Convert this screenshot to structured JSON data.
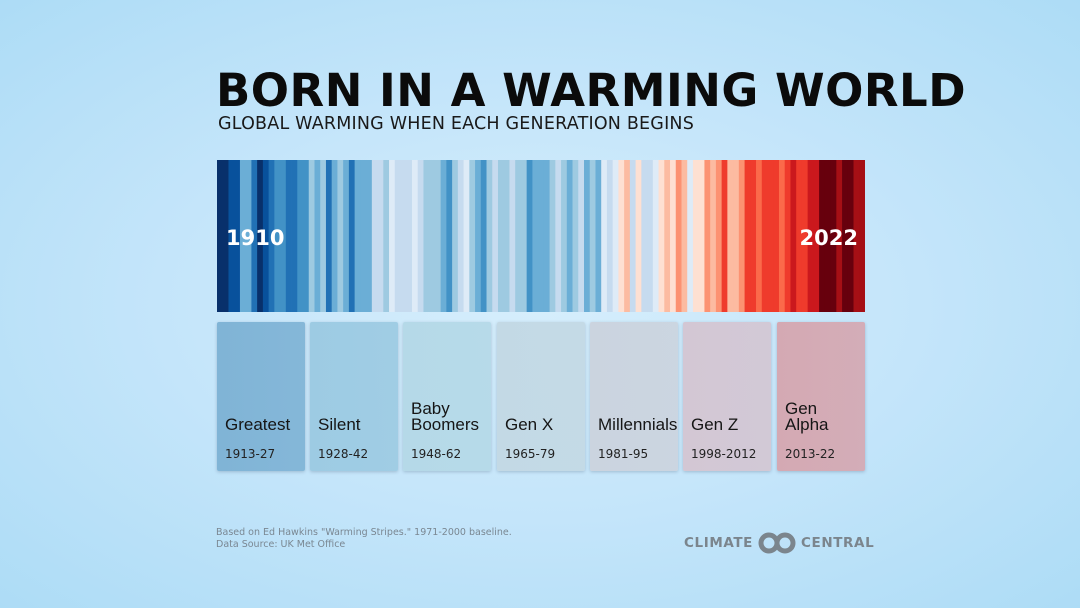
{
  "header": {
    "title": "BORN IN A WARMING WORLD",
    "subtitle": "GLOBAL WARMING WHEN EACH GENERATION BEGINS"
  },
  "chart_data": {
    "type": "heatmap",
    "x_start": 1910,
    "x_end": 2022,
    "start_label": "1910",
    "end_label": "2022",
    "palette": [
      "#08306b",
      "#08519c",
      "#2171b5",
      "#4292c6",
      "#6baed6",
      "#9ecae1",
      "#c6dbef",
      "#deebf7",
      "#fee0d2",
      "#fcbba1",
      "#fc9272",
      "#fb6a4a",
      "#ef3b2c",
      "#cb181d",
      "#a50f15",
      "#67000d"
    ],
    "stripe_color_index": [
      0,
      0,
      1,
      1,
      4,
      4,
      2,
      0,
      1,
      2,
      3,
      3,
      2,
      2,
      3,
      3,
      5,
      4,
      5,
      2,
      4,
      5,
      4,
      2,
      4,
      4,
      4,
      6,
      6,
      5,
      7,
      6,
      6,
      6,
      7,
      6,
      5,
      5,
      5,
      4,
      3,
      5,
      6,
      7,
      5,
      4,
      3,
      5,
      6,
      5,
      5,
      6,
      5,
      5,
      3,
      4,
      4,
      4,
      5,
      6,
      5,
      4,
      5,
      6,
      4,
      5,
      4,
      7,
      6,
      7,
      8,
      9,
      6,
      8,
      6,
      6,
      7,
      8,
      9,
      8,
      10,
      9,
      7,
      8,
      8,
      10,
      9,
      10,
      12,
      9,
      9,
      10,
      12,
      12,
      11,
      12,
      12,
      12,
      11,
      12,
      13,
      12,
      12,
      13,
      13,
      15,
      15,
      15,
      14,
      15,
      15,
      14,
      14
    ]
  },
  "generations": [
    {
      "name": "Greatest",
      "years": "1913-27",
      "color": "#80b4d6"
    },
    {
      "name": "Silent",
      "years": "1928-42",
      "color": "#9dcbe3"
    },
    {
      "name": "Baby Boomers",
      "years": "1948-62",
      "color": "#b5d9e8"
    },
    {
      "name": "Gen X",
      "years": "1965-79",
      "color": "#c3d9e5"
    },
    {
      "name": "Millennials",
      "years": "1981-95",
      "color": "#cbd4df"
    },
    {
      "name": "Gen Z",
      "years": "1998-2012",
      "color": "#d3c7d4"
    },
    {
      "name": "Gen Alpha",
      "years": "2013-22",
      "color": "#d4a9b3"
    }
  ],
  "footer": {
    "note": "Based on Ed Hawkins \"Warming Stripes.\" 1971-2000 baseline.",
    "source": "Data Source: UK Met Office"
  },
  "logo": {
    "left": "CLIMATE",
    "right": "CENTRAL",
    "color": "#7b858d"
  }
}
